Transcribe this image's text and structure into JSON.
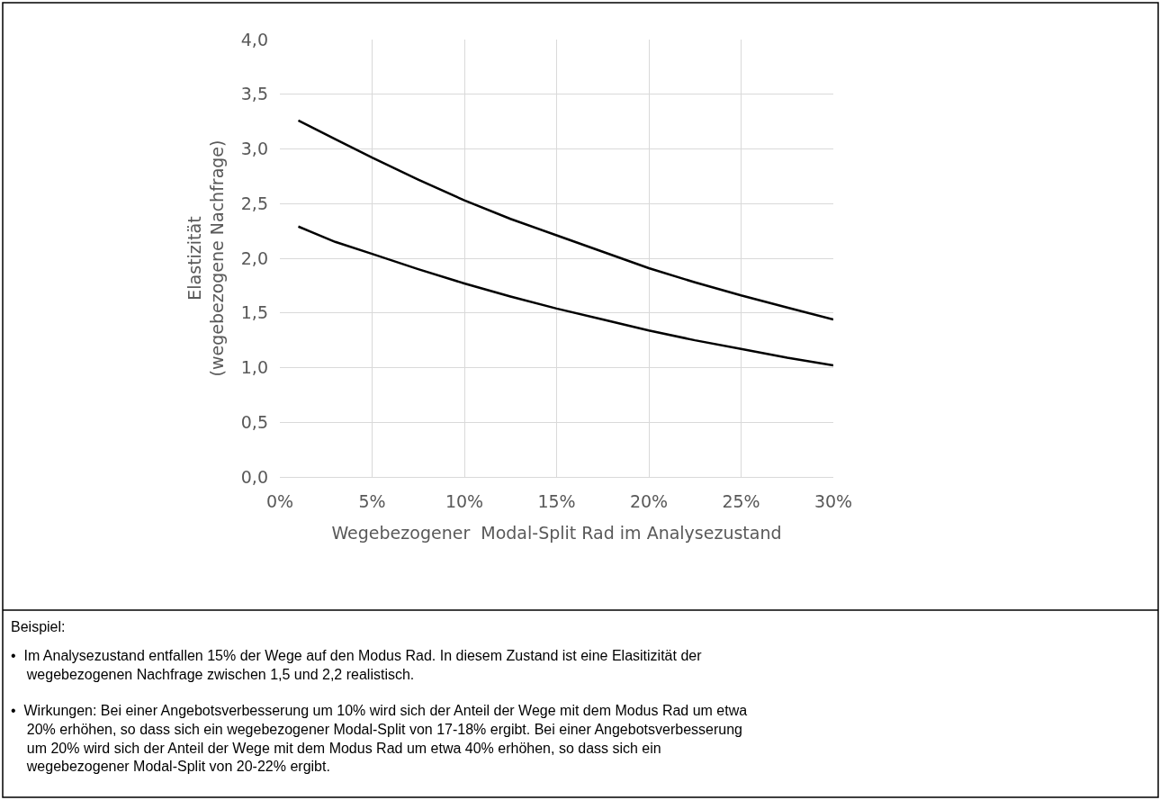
{
  "chart_data": {
    "type": "line",
    "xlabel": "Wegebezogener  Modal-Split Rad im Analysezustand",
    "ylabel": "Elastizität\n(wegebezogene Nachfrage)",
    "xlim": [
      0,
      30
    ],
    "xticks": [
      {
        "value": 0,
        "label": "0%"
      },
      {
        "value": 5,
        "label": "5%"
      },
      {
        "value": 10,
        "label": "10%"
      },
      {
        "value": 15,
        "label": "15%"
      },
      {
        "value": 20,
        "label": "20%"
      },
      {
        "value": 25,
        "label": "25%"
      },
      {
        "value": 30,
        "label": "30%"
      }
    ],
    "ylim": [
      0,
      4
    ],
    "yticks": [
      {
        "value": 0,
        "label": "0,0"
      },
      {
        "value": 0.5,
        "label": "0,5"
      },
      {
        "value": 1,
        "label": "1,0"
      },
      {
        "value": 1.5,
        "label": "1,5"
      },
      {
        "value": 2,
        "label": "2,0"
      },
      {
        "value": 2.5,
        "label": "2,5"
      },
      {
        "value": 3,
        "label": "3,0"
      },
      {
        "value": 3.5,
        "label": "3,5"
      },
      {
        "value": 4,
        "label": "4,0"
      }
    ],
    "x": [
      1,
      3,
      5,
      7.5,
      10,
      12.5,
      15,
      17.5,
      20,
      22.5,
      25,
      27.5,
      30
    ],
    "series": [
      {
        "color": "#000000",
        "values": [
          3.26,
          3.09,
          2.92,
          2.72,
          2.53,
          2.36,
          2.21,
          2.06,
          1.91,
          1.78,
          1.66,
          1.55,
          1.44
        ]
      },
      {
        "color": "#000000",
        "values": [
          2.29,
          2.15,
          2.04,
          1.9,
          1.77,
          1.65,
          1.54,
          1.44,
          1.34,
          1.25,
          1.17,
          1.09,
          1.02
        ]
      }
    ],
    "grid": true,
    "marker": "none",
    "line_style": "solid",
    "annotations": [
      "Beispiel:",
      "•  Im Analysezustand entfallen 15% der Wege auf den Modus Rad. In diesem Zustand ist eine Elasitizität der\n    wegebezogenen Nachfrage zwischen 1,5 und 2,2 realistisch.",
      "•  Wirkungen: Bei einer Angebotsverbesserung um 10% wird sich der Anteil der Wege mit dem Modus Rad um etwa\n    20% erhöhen, so dass sich ein wegebezogener Modal-Split von 17-18% ergibt. Bei einer Angebotsverbesserung\n    um 20% wird sich der Anteil der Wege mit dem Modus Rad um etwa 40% erhöhen, so dass sich ein\n    wegebezogener Modal-Split von 20-22% ergibt."
    ]
  }
}
